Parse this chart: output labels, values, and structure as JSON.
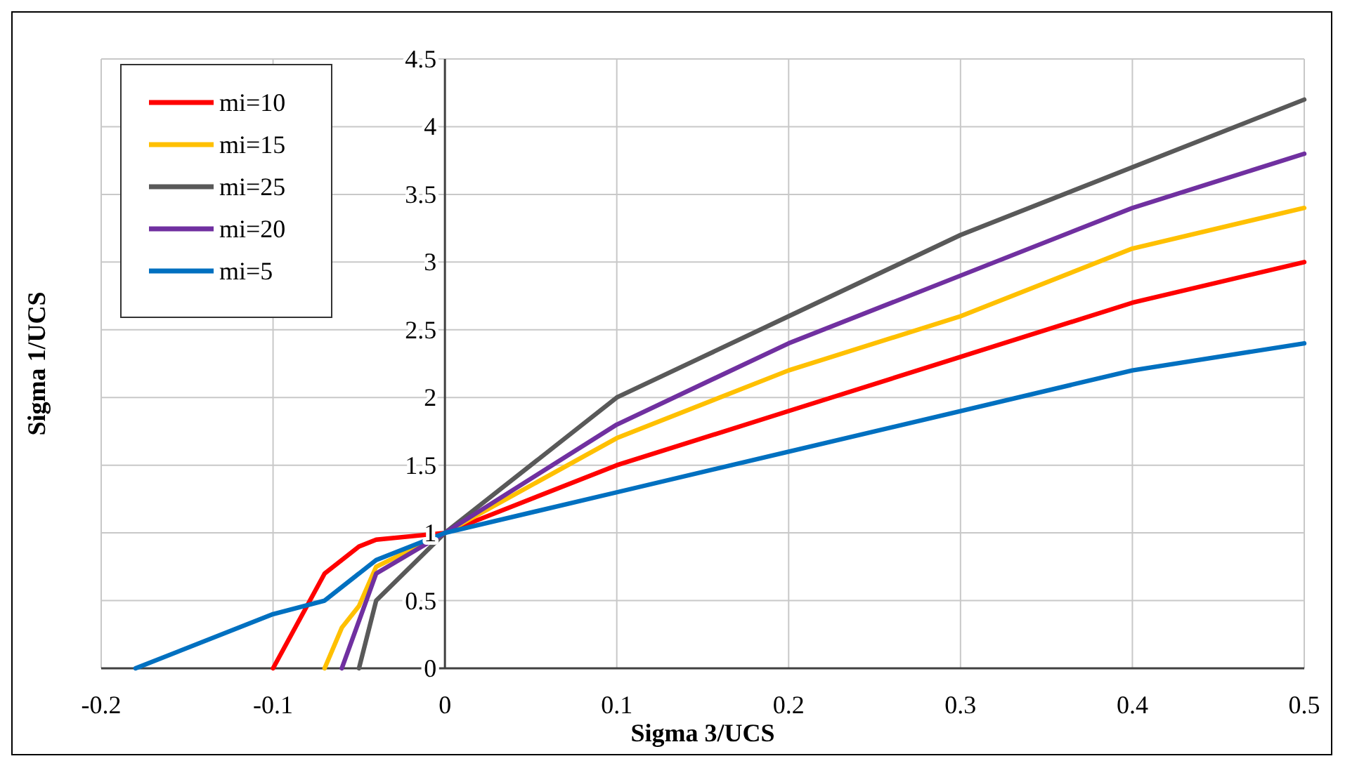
{
  "chart_data": {
    "type": "line",
    "xlabel": "Sigma 3/UCS",
    "ylabel": "Sigma 1/UCS",
    "xlim": [
      -0.2,
      0.5
    ],
    "xticks": [
      -0.2,
      -0.1,
      0,
      0.1,
      0.2,
      0.3,
      0.4,
      0.5
    ],
    "ylim": [
      0,
      4.5
    ],
    "yticks": [
      0,
      0.5,
      1,
      1.5,
      2,
      2.5,
      3,
      3.5,
      4,
      4.5
    ],
    "grid": true,
    "legend": "top left",
    "marker": "none",
    "line_style": "solid",
    "series": [
      {
        "name": "mi=10",
        "color": "#ff0000",
        "x": [
          -0.1,
          -0.07,
          -0.05,
          -0.04,
          0,
          0.1,
          0.2,
          0.3,
          0.4,
          0.5
        ],
        "values": [
          0,
          0.7,
          0.9,
          0.95,
          1,
          1.5,
          1.9,
          2.3,
          2.7,
          3
        ]
      },
      {
        "name": "mi=15",
        "color": "#ffc000",
        "x": [
          -0.07,
          -0.06,
          -0.05,
          -0.04,
          0,
          0.1,
          0.2,
          0.3,
          0.4,
          0.5
        ],
        "values": [
          0,
          0.3,
          0.46,
          0.75,
          1,
          1.7,
          2.2,
          2.6,
          3.1,
          3.4
        ]
      },
      {
        "name": "mi=25",
        "color": "#595959",
        "x": [
          -0.05,
          -0.04,
          0,
          0.1,
          0.2,
          0.3,
          0.4,
          0.5
        ],
        "values": [
          0,
          0.5,
          1,
          2,
          2.6,
          3.2,
          3.7,
          4.2
        ]
      },
      {
        "name": "mi=20",
        "color": "#7030a0",
        "x": [
          -0.06,
          -0.04,
          0,
          0.1,
          0.2,
          0.3,
          0.4,
          0.5
        ],
        "values": [
          0,
          0.7,
          1,
          1.8,
          2.4,
          2.9,
          3.4,
          3.8
        ]
      },
      {
        "name": "mi=5",
        "color": "#0070c0",
        "x": [
          -0.18,
          -0.1,
          -0.07,
          -0.04,
          0,
          0.1,
          0.2,
          0.3,
          0.4,
          0.5
        ],
        "values": [
          0,
          0.4,
          0.5,
          0.8,
          1,
          1.3,
          1.6,
          1.9,
          2.2,
          2.4
        ]
      }
    ]
  }
}
